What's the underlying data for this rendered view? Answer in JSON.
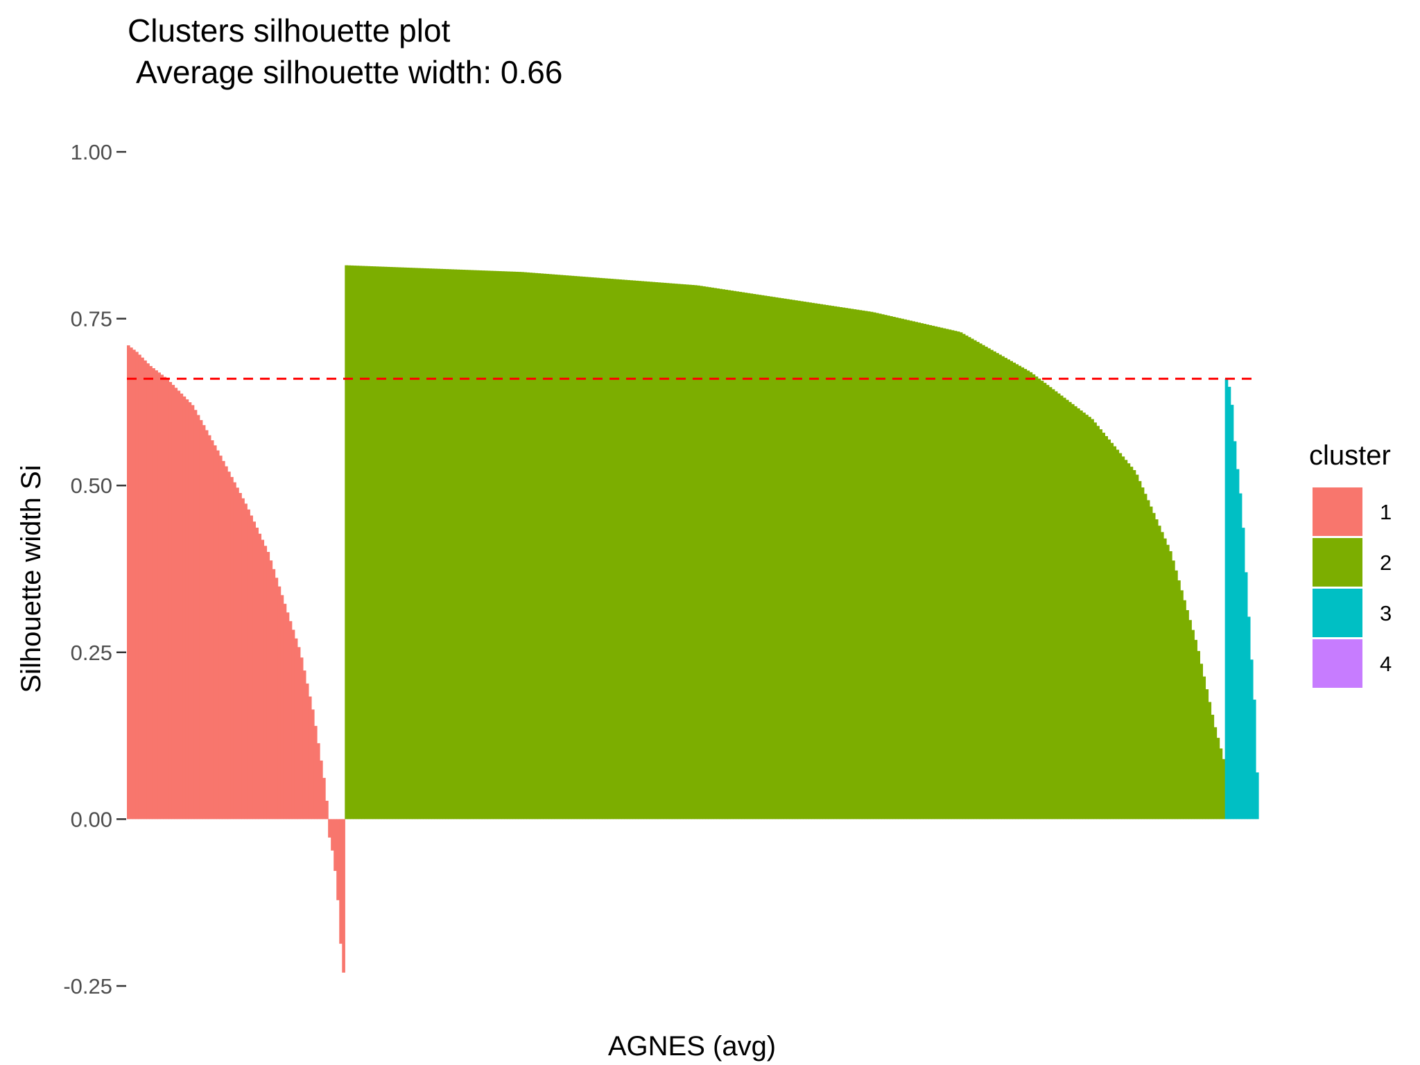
{
  "chart_data": {
    "type": "bar",
    "title": "Clusters silhouette plot",
    "subtitle": "Average silhouette width: 0.66",
    "xlabel": "AGNES (avg)",
    "ylabel": "Silhouette width Si",
    "ylim": [
      -0.25,
      1.0
    ],
    "yticks": [
      "1.00",
      "0.75",
      "0.50",
      "0.25",
      "0.00",
      "-0.25"
    ],
    "ytick_values": [
      1.0,
      0.75,
      0.5,
      0.25,
      0.0,
      -0.25
    ],
    "average_line": {
      "value": 0.66,
      "color": "#ff0000",
      "style": "dashed"
    },
    "grid": false,
    "legend": {
      "title": "cluster",
      "placement": "right",
      "entries": [
        {
          "label": "1",
          "color": "#F8766D"
        },
        {
          "label": "2",
          "color": "#7CAE00"
        },
        {
          "label": "3",
          "color": "#00BFC4"
        },
        {
          "label": "4",
          "color": "#C77CFF"
        }
      ]
    },
    "series": [
      {
        "name": "1",
        "color": "#F8766D",
        "n": 78,
        "profile": [
          [
            0,
            0.71
          ],
          [
            0.04,
            0.7
          ],
          [
            0.1,
            0.68
          ],
          [
            0.18,
            0.66
          ],
          [
            0.3,
            0.62
          ],
          [
            0.42,
            0.55
          ],
          [
            0.55,
            0.47
          ],
          [
            0.65,
            0.4
          ],
          [
            0.72,
            0.33
          ],
          [
            0.8,
            0.25
          ],
          [
            0.86,
            0.16
          ],
          [
            0.9,
            0.08
          ],
          [
            0.92,
            0.04
          ],
          [
            0.93,
            -0.02
          ],
          [
            0.95,
            -0.05
          ],
          [
            0.97,
            -0.1
          ],
          [
            0.985,
            -0.18
          ],
          [
            1.0,
            -0.23
          ]
        ]
      },
      {
        "name": "2",
        "color": "#7CAE00",
        "n": 315,
        "profile": [
          [
            0,
            0.83
          ],
          [
            0.2,
            0.82
          ],
          [
            0.4,
            0.8
          ],
          [
            0.6,
            0.76
          ],
          [
            0.7,
            0.73
          ],
          [
            0.78,
            0.67
          ],
          [
            0.85,
            0.6
          ],
          [
            0.9,
            0.52
          ],
          [
            0.94,
            0.4
          ],
          [
            0.97,
            0.26
          ],
          [
            0.99,
            0.14
          ],
          [
            1.0,
            0.09
          ]
        ]
      },
      {
        "name": "3",
        "color": "#00BFC4",
        "n": 12,
        "profile": [
          [
            0,
            0.66
          ],
          [
            0.15,
            0.64
          ],
          [
            0.3,
            0.55
          ],
          [
            0.5,
            0.47
          ],
          [
            0.65,
            0.36
          ],
          [
            0.8,
            0.25
          ],
          [
            0.9,
            0.19
          ],
          [
            1.0,
            0.07
          ]
        ]
      },
      {
        "name": "4",
        "color": "#C77CFF",
        "n": 0,
        "profile": []
      }
    ]
  }
}
